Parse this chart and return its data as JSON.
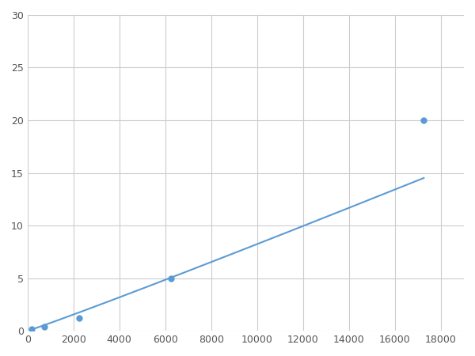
{
  "marker_x": [
    188,
    750,
    2250,
    6250,
    17250
  ],
  "marker_y": [
    0.2,
    0.4,
    1.2,
    5.0,
    20.0
  ],
  "line_color": "#5b9bd5",
  "marker_color": "#5b9bd5",
  "marker_size": 6,
  "xlim": [
    0,
    19000
  ],
  "ylim": [
    0,
    30
  ],
  "xticks": [
    0,
    2000,
    4000,
    6000,
    8000,
    10000,
    12000,
    14000,
    16000,
    18000
  ],
  "yticks": [
    0,
    5,
    10,
    15,
    20,
    25,
    30
  ],
  "grid_color": "#cccccc",
  "background_color": "#ffffff",
  "figsize": [
    6.0,
    4.5
  ],
  "dpi": 100
}
